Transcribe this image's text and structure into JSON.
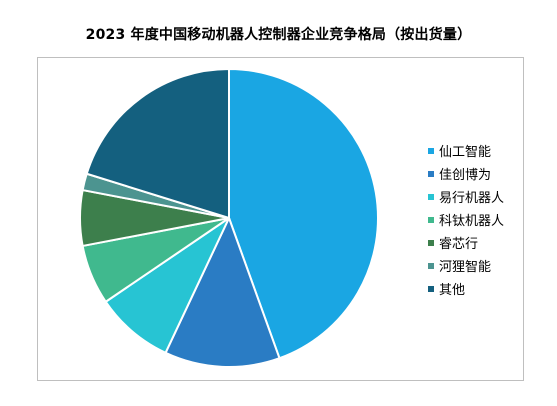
{
  "chart_data": {
    "type": "pie",
    "title": "2023 年度中国移动机器人控制器企业竞争格局（按出货量）",
    "categories": [
      "仙工智能",
      "佳创博为",
      "易行机器人",
      "科钛机器人",
      "睿芯行",
      "河狸智能",
      "其他"
    ],
    "values": [
      44.5,
      12.5,
      8.5,
      6.5,
      6.0,
      1.8,
      20.2
    ],
    "colors": [
      "#1AA6E3",
      "#2A7CC4",
      "#27C4D3",
      "#40B98E",
      "#3D7F4C",
      "#4C9490",
      "#14607F"
    ],
    "start_angle_deg": 0,
    "direction": "clockwise",
    "legend_position": "right"
  }
}
